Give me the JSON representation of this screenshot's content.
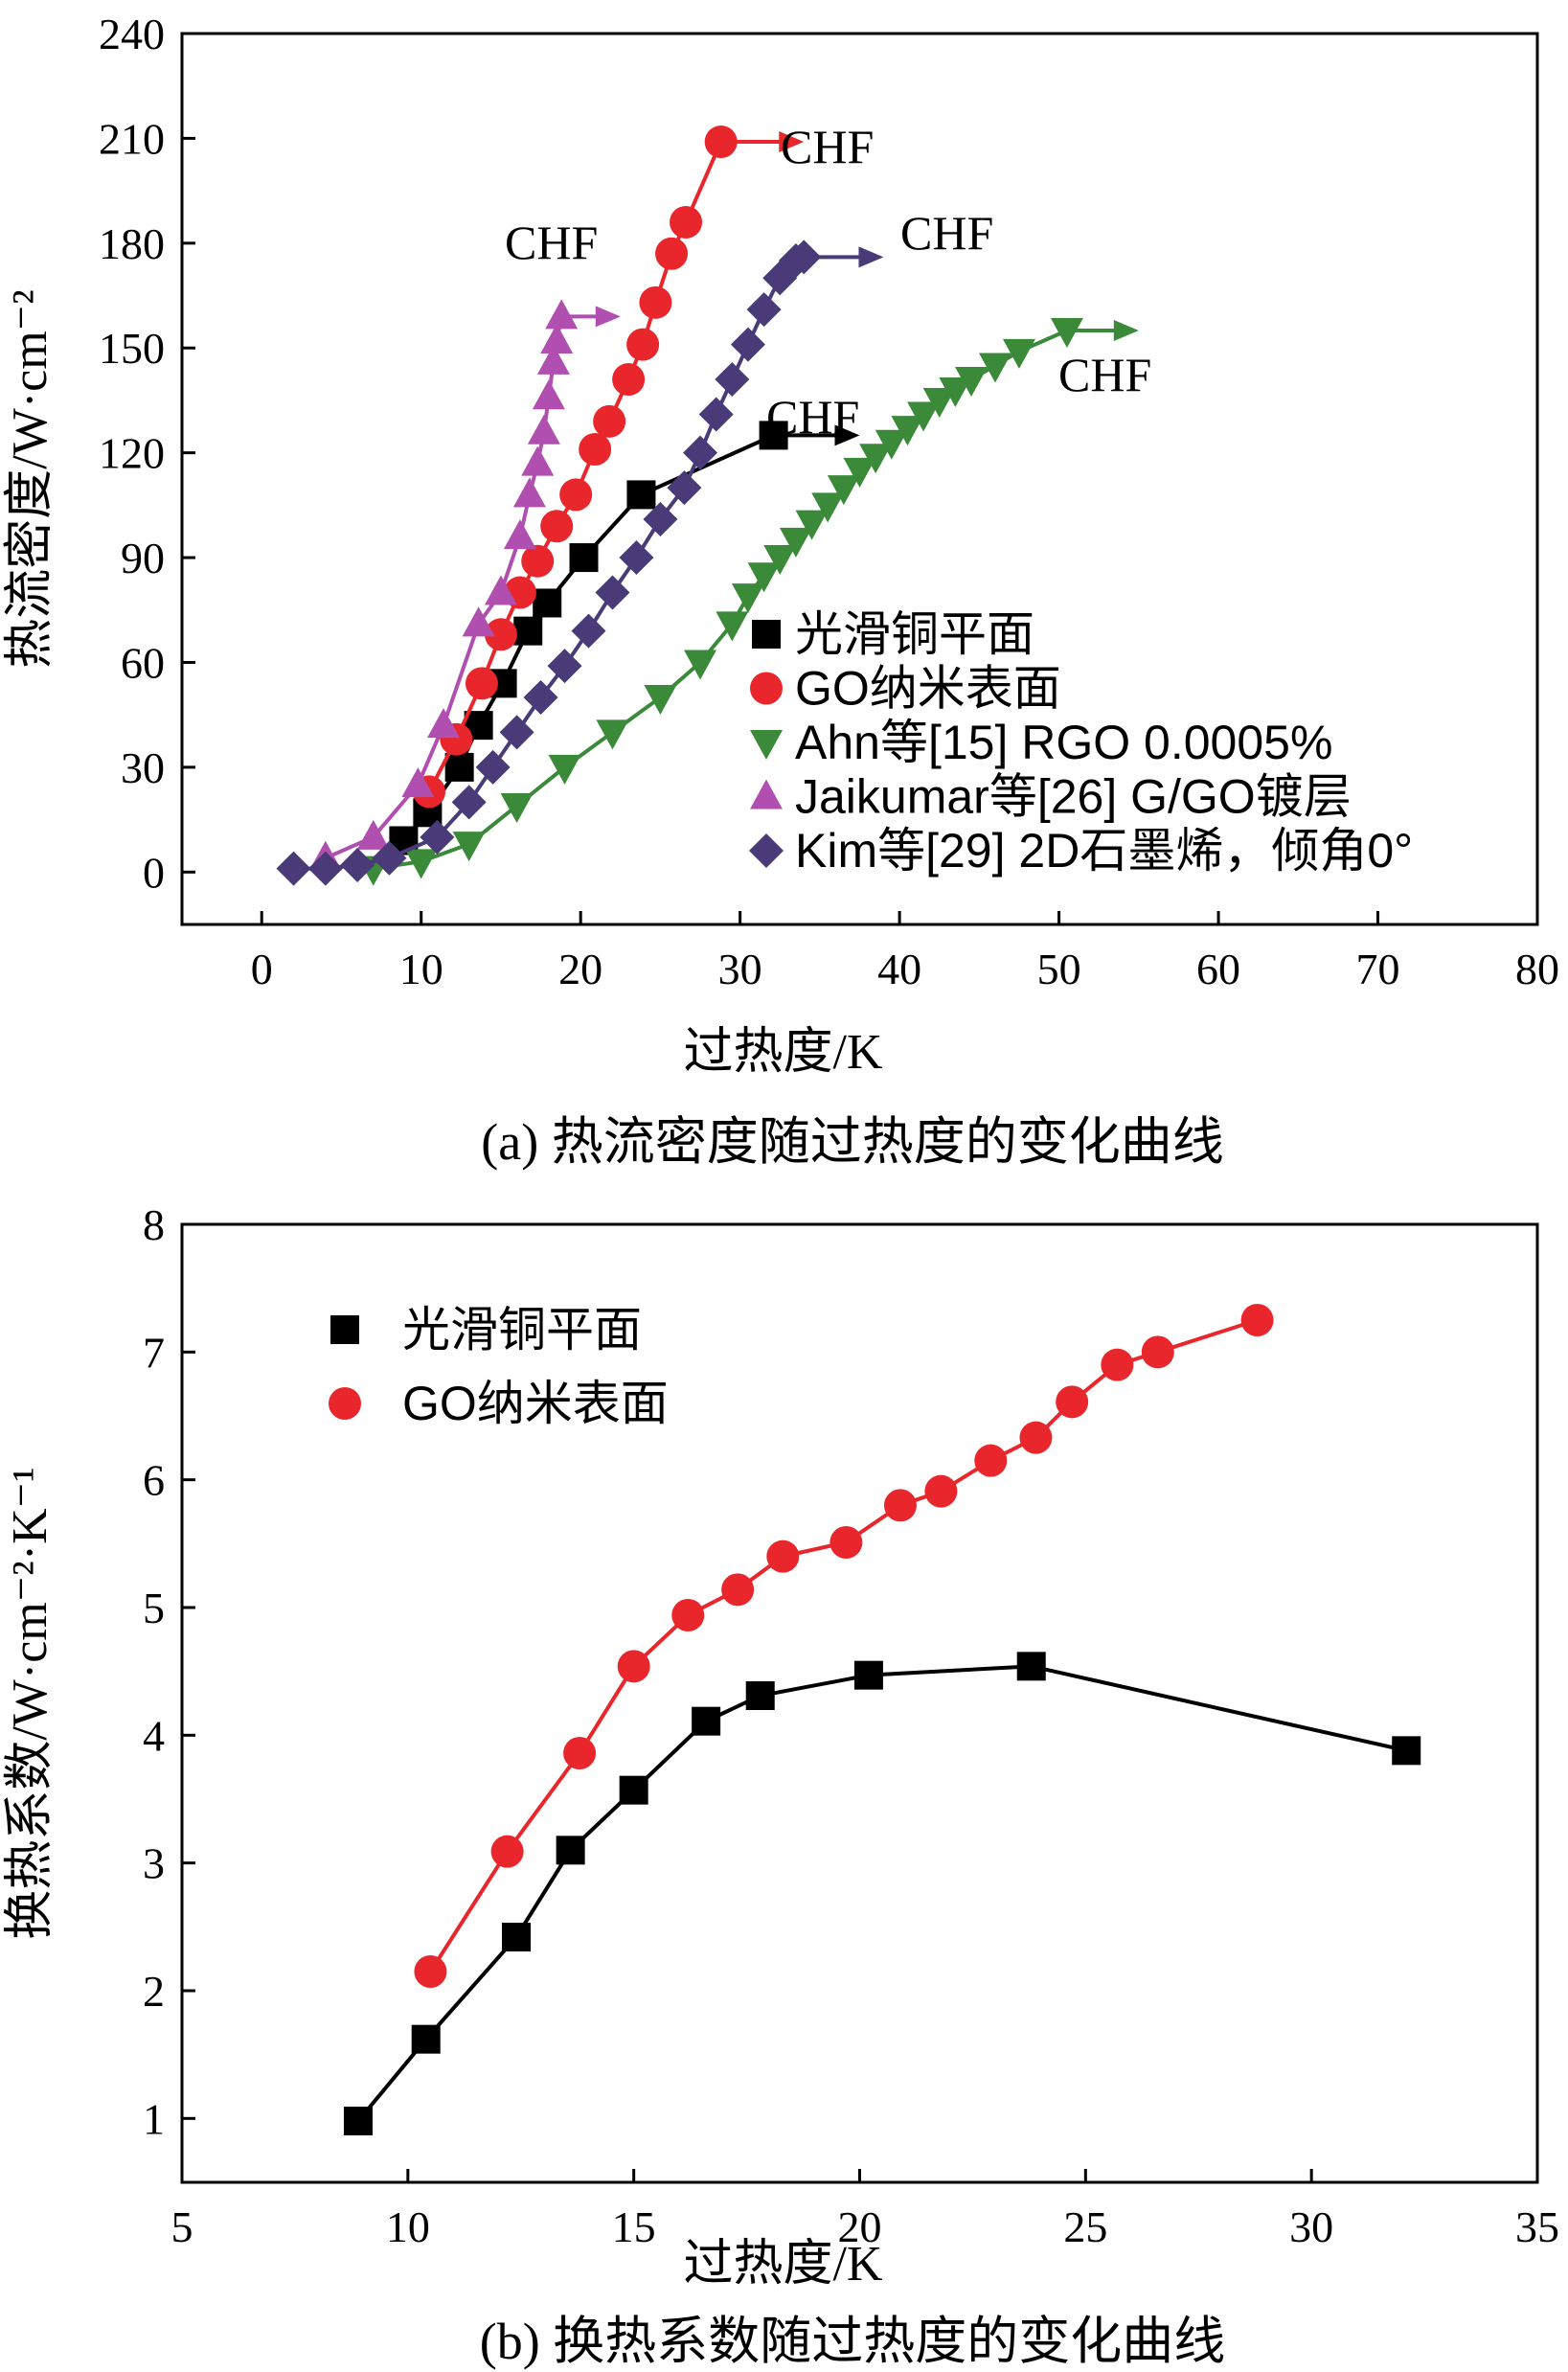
{
  "chart_data": [
    {
      "type": "line",
      "xlabel": "过热度/K",
      "ylabel": "热流密度/W·cm⁻²",
      "caption": "(a) 热流密度随过热度的变化曲线",
      "xlim": [
        -5,
        80
      ],
      "ylim": [
        -15,
        240
      ],
      "xticks": [
        0,
        10,
        20,
        30,
        40,
        50,
        60,
        70,
        80
      ],
      "yticks": [
        0,
        30,
        60,
        90,
        120,
        150,
        180,
        210,
        240
      ],
      "legend_position": "bottom-right",
      "series": [
        {
          "name": "光滑铜平面",
          "color": "#000000",
          "marker": "square",
          "x": [
            8.9,
            10.4,
            12.4,
            13.6,
            15.1,
            16.7,
            17.9,
            20.2,
            23.8,
            32.1
          ],
          "y": [
            9,
            17,
            30,
            42,
            54,
            69,
            77,
            90,
            108,
            125
          ],
          "chf_arrow_to": 37.5,
          "chf_label": "CHF"
        },
        {
          "name": "GO纳米表面",
          "color": "#e8262b",
          "marker": "circle",
          "x": [
            10.5,
            12.2,
            13.8,
            15.0,
            16.2,
            17.3,
            18.5,
            19.7,
            20.9,
            21.8,
            23.0,
            23.9,
            24.7,
            25.7,
            26.6,
            28.8
          ],
          "y": [
            23,
            38,
            54,
            68,
            80,
            89,
            99,
            108,
            121,
            129,
            141,
            151,
            163,
            177,
            186,
            209
          ],
          "chf_arrow_to": 34.0,
          "chf_label": "CHF"
        },
        {
          "name": "Ahn等[15] RGO 0.0005%",
          "color": "#3a8a3a",
          "marker": "triangle-down",
          "x": [
            7.0,
            10.0,
            13.0,
            16.0,
            19.0,
            22.0,
            25.0,
            27.5,
            29.5,
            30.5,
            31.5,
            32.5,
            33.5,
            34.5,
            35.5,
            36.5,
            37.5,
            38.5,
            39.5,
            40.5,
            41.5,
            42.5,
            43.5,
            44.5,
            46.0,
            47.5,
            50.5
          ],
          "y": [
            1,
            3,
            8,
            19,
            30,
            40,
            50,
            60,
            71,
            79,
            85,
            90,
            95,
            100,
            105,
            110,
            115,
            119,
            123,
            127,
            131,
            135,
            138,
            141,
            145,
            149,
            155
          ],
          "chf_arrow_to": 55.0,
          "chf_label": "CHF"
        },
        {
          "name": "Jaikumar等[26] G/GO镀层",
          "color": "#b04fb0",
          "marker": "triangle-up",
          "x": [
            4.0,
            7.0,
            9.8,
            11.4,
            13.6,
            15.0,
            16.2,
            16.8,
            17.3,
            17.7,
            18.0,
            18.3,
            18.5,
            18.8
          ],
          "y": [
            4,
            10,
            25,
            42,
            71,
            80,
            96,
            108,
            117,
            126,
            136,
            146,
            152,
            159
          ],
          "chf_arrow_to": 22.5,
          "chf_label": "CHF"
        },
        {
          "name": "Kim等[29] 2D石墨烯，倾角0°",
          "color": "#4a3a78",
          "marker": "diamond",
          "x": [
            2.0,
            4.0,
            6.0,
            8.0,
            11.0,
            13.0,
            14.5,
            16.0,
            17.5,
            19.0,
            20.5,
            22.0,
            23.5,
            25.0,
            26.5,
            27.5,
            28.5,
            29.5,
            30.5,
            31.5,
            32.5,
            33.5,
            34.0
          ],
          "y": [
            1,
            1,
            2,
            4,
            10,
            20,
            30,
            40,
            50,
            59,
            69,
            80,
            90,
            101,
            110,
            120,
            131,
            141,
            151,
            161,
            170,
            175,
            176
          ],
          "chf_arrow_to": 39.0,
          "chf_label": "CHF"
        }
      ]
    },
    {
      "type": "line",
      "xlabel": "过热度/K",
      "ylabel": "换热系数/W·cm⁻²·K⁻¹",
      "caption": "(b) 换热系数随过热度的变化曲线",
      "xlim": [
        5,
        35
      ],
      "ylim": [
        0.5,
        8
      ],
      "xticks": [
        5,
        10,
        15,
        20,
        25,
        30,
        35
      ],
      "yticks": [
        1,
        2,
        3,
        4,
        5,
        6,
        7,
        8
      ],
      "legend_position": "top-left",
      "series": [
        {
          "name": "光滑铜平面",
          "color": "#000000",
          "marker": "square",
          "x": [
            8.9,
            10.4,
            12.4,
            13.6,
            15.0,
            16.6,
            17.8,
            20.2,
            23.8,
            32.1
          ],
          "y": [
            0.98,
            1.62,
            2.42,
            3.1,
            3.57,
            4.11,
            4.31,
            4.47,
            4.54,
            3.88
          ]
        },
        {
          "name": "GO纳米表面",
          "color": "#e8262b",
          "marker": "circle",
          "x": [
            10.5,
            12.2,
            13.8,
            15.0,
            16.2,
            17.3,
            18.3,
            19.7,
            20.9,
            21.8,
            22.9,
            23.9,
            24.7,
            25.7,
            26.6,
            28.8
          ],
          "y": [
            2.15,
            3.09,
            3.86,
            4.54,
            4.94,
            5.14,
            5.4,
            5.51,
            5.8,
            5.91,
            6.15,
            6.33,
            6.61,
            6.9,
            7.0,
            7.25
          ]
        }
      ]
    }
  ]
}
